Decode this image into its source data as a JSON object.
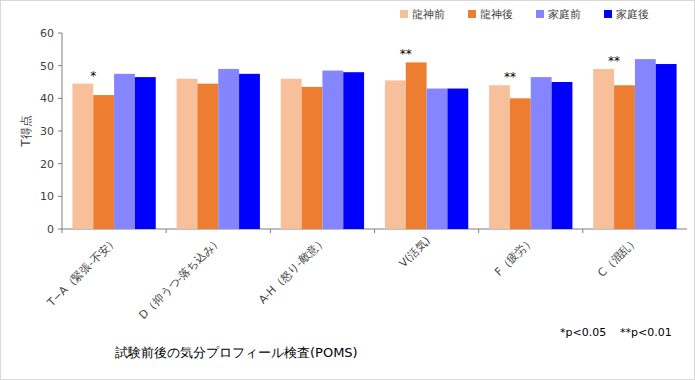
{
  "chart_data": {
    "type": "bar",
    "x_label": "試験前後の気分プロフィール検査(POMS)",
    "y_label": "T得点",
    "categories": [
      "T−A（緊張-不安）",
      "D（抑うつ-落ち込み）",
      "A-H（怒り-敵意）",
      "V(活気)",
      "F（疲労）",
      "C（混乱）"
    ],
    "series": [
      {
        "name": "龍神前",
        "color": "#f8c09a",
        "values": [
          44.5,
          46,
          46,
          45.5,
          44,
          49
        ]
      },
      {
        "name": "龍神後",
        "color": "#ed7d31",
        "values": [
          41,
          44.5,
          43.5,
          51,
          40,
          44
        ]
      },
      {
        "name": "家庭前",
        "color": "#8585ff",
        "values": [
          47.5,
          49,
          48.5,
          43,
          46.5,
          52
        ]
      },
      {
        "name": "家庭後",
        "color": "#0000ff",
        "values": [
          46.5,
          47.5,
          48,
          43,
          45,
          50.5
        ]
      }
    ],
    "significance": [
      "*",
      null,
      null,
      "**",
      "**",
      "**"
    ],
    "annotations": [
      "*p<0.05",
      "**p<0.01"
    ],
    "ylim": [
      0,
      60
    ],
    "yticks": [
      0,
      10,
      20,
      30,
      40,
      50,
      60
    ],
    "grid": false,
    "legend": "top-right"
  }
}
